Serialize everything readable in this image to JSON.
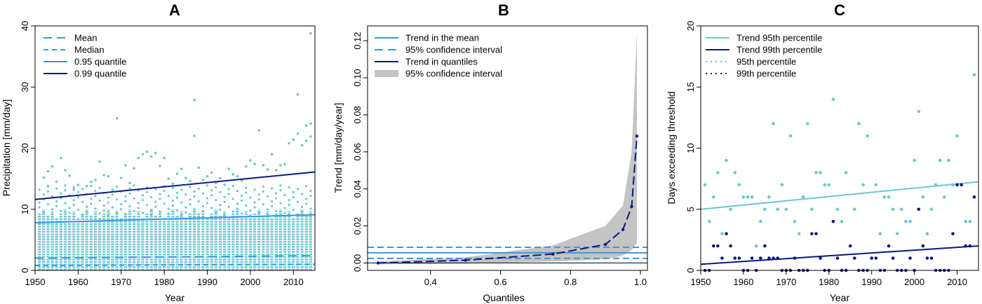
{
  "colors": {
    "light": "#6ec6cf",
    "medium": "#3399e6",
    "dark": "#0b1a80",
    "band": "#c4c4c4"
  },
  "chart_data": [
    {
      "type": "scatter",
      "title": "A",
      "xlabel": "Year",
      "ylabel": "Precipitation [mm/day]",
      "xlim": [
        1950,
        2015
      ],
      "ylim": [
        0,
        40
      ],
      "xticks": [
        1950,
        1960,
        1970,
        1980,
        1990,
        2000,
        2010
      ],
      "yticks": [
        0,
        10,
        20,
        30,
        40
      ],
      "legend_position": "top-left",
      "legend": [
        {
          "label": "Mean",
          "color": "medium",
          "style": "dashed"
        },
        {
          "label": "Median",
          "color": "medium",
          "style": "dashed-fine"
        },
        {
          "label": "0.95 quantile",
          "color": "medium",
          "style": "solid"
        },
        {
          "label": "0.99 quantile",
          "color": "dark",
          "style": "solid"
        }
      ],
      "lines": [
        {
          "name": "Mean",
          "style": "dashed",
          "color": "medium",
          "x": [
            1950,
            2015
          ],
          "y": [
            2.0,
            2.4
          ]
        },
        {
          "name": "Median",
          "style": "dashed-fine",
          "color": "medium",
          "x": [
            1950,
            2015
          ],
          "y": [
            0.8,
            1.0
          ]
        },
        {
          "name": "0.95 quantile",
          "style": "solid",
          "color": "medium",
          "x": [
            1950,
            2015
          ],
          "y": [
            7.8,
            9.1
          ]
        },
        {
          "name": "0.99 quantile",
          "style": "solid",
          "color": "dark",
          "x": [
            1950,
            2015
          ],
          "y": [
            11.6,
            16.1
          ]
        }
      ],
      "points": [
        [
          1952,
          15.2
        ],
        [
          1953,
          13.8
        ],
        [
          1953,
          16.2
        ],
        [
          1954,
          17.0
        ],
        [
          1955,
          14.5
        ],
        [
          1956,
          18.4
        ],
        [
          1957,
          16.4
        ],
        [
          1958,
          15.5
        ],
        [
          1959,
          13.2
        ],
        [
          1960,
          14.0
        ],
        [
          1962,
          13.8
        ],
        [
          1963,
          14.5
        ],
        [
          1964,
          14.8
        ],
        [
          1965,
          17.8
        ],
        [
          1966,
          15.6
        ],
        [
          1967,
          15.4
        ],
        [
          1968,
          13.2
        ],
        [
          1969,
          24.9
        ],
        [
          1970,
          15.1
        ],
        [
          1971,
          17.2
        ],
        [
          1972,
          14.3
        ],
        [
          1973,
          16.7
        ],
        [
          1974,
          18.4
        ],
        [
          1975,
          19.0
        ],
        [
          1976,
          19.4
        ],
        [
          1977,
          18.6
        ],
        [
          1978,
          19.2
        ],
        [
          1979,
          17.1
        ],
        [
          1980,
          18.4
        ],
        [
          1981,
          15.0
        ],
        [
          1982,
          14.2
        ],
        [
          1983,
          15.8
        ],
        [
          1984,
          16.6
        ],
        [
          1985,
          15.1
        ],
        [
          1986,
          14.6
        ],
        [
          1987,
          27.9
        ],
        [
          1987,
          22.0
        ],
        [
          1988,
          16.8
        ],
        [
          1989,
          14.8
        ],
        [
          1990,
          15.4
        ],
        [
          1991,
          16.0
        ],
        [
          1992,
          14.3
        ],
        [
          1993,
          15.1
        ],
        [
          1994,
          14.0
        ],
        [
          1995,
          16.6
        ],
        [
          1996,
          15.7
        ],
        [
          1997,
          15.4
        ],
        [
          1998,
          14.7
        ],
        [
          1999,
          17.0
        ],
        [
          2000,
          18.0
        ],
        [
          2001,
          17.4
        ],
        [
          2002,
          22.9
        ],
        [
          2003,
          17.2
        ],
        [
          2004,
          16.5
        ],
        [
          2005,
          19.0
        ],
        [
          2006,
          16.4
        ],
        [
          2007,
          17.2
        ],
        [
          2008,
          17.4
        ],
        [
          2009,
          20.8
        ],
        [
          2010,
          21.4
        ],
        [
          2011,
          28.8
        ],
        [
          2011,
          22.4
        ],
        [
          2012,
          20.5
        ],
        [
          2013,
          21.2
        ],
        [
          2013,
          23.7
        ],
        [
          2014,
          38.8
        ],
        [
          2014,
          24.0
        ],
        [
          2014,
          21.9
        ]
      ]
    },
    {
      "type": "line",
      "title": "B",
      "xlabel": "Quantiles",
      "ylabel": "Trend [mm/day/year]",
      "xlim": [
        0.22,
        1.02
      ],
      "ylim": [
        -0.004,
        0.128
      ],
      "xticks": [
        0.4,
        0.6,
        0.8,
        1.0
      ],
      "xtick_labels": [
        "0.4",
        "0.6",
        "0.8",
        "1.0"
      ],
      "yticks": [
        0.0,
        0.02,
        0.04,
        0.06,
        0.08,
        0.1,
        0.12
      ],
      "ytick_labels": [
        "0.00",
        "0.02",
        "0.04",
        "0.06",
        "0.08",
        "0.10",
        "0.12"
      ],
      "legend_position": "top-left",
      "legend": [
        {
          "label": "Trend in the mean",
          "color": "medium",
          "style": "solid"
        },
        {
          "label": "95% confidence interval",
          "color": "medium",
          "style": "dashed"
        },
        {
          "label": "Trend in quantiles",
          "color": "dark",
          "style": "solid"
        },
        {
          "label": "95% confidence interval",
          "color": "band",
          "style": "band"
        }
      ],
      "mean_trend": 0.0055,
      "mean_ci": [
        0.0025,
        0.0085
      ],
      "quantiles": [
        0.25,
        0.5,
        0.75,
        0.9,
        0.95,
        0.975,
        0.99
      ],
      "trend": [
        0.0,
        0.0015,
        0.0048,
        0.01,
        0.018,
        0.0305,
        0.0685
      ],
      "ci_lower": [
        -0.0008,
        -0.0003,
        0.0008,
        0.002,
        0.004,
        0.007,
        0.011
      ],
      "ci_upper": [
        0.0008,
        0.003,
        0.0095,
        0.02,
        0.031,
        0.06,
        0.1245
      ]
    },
    {
      "type": "scatter",
      "title": "C",
      "xlabel": "Year",
      "ylabel": "Days exceeding threshold",
      "xlim": [
        1950,
        2015
      ],
      "ylim": [
        0,
        20
      ],
      "xticks": [
        1950,
        1960,
        1970,
        1980,
        1990,
        2000,
        2010
      ],
      "yticks": [
        0,
        5,
        10,
        15,
        20
      ],
      "legend_position": "top-left",
      "legend": [
        {
          "label": "Trend 95th percentile",
          "color": "light",
          "style": "solid"
        },
        {
          "label": "Trend 99th percentile",
          "color": "dark",
          "style": "solid"
        },
        {
          "label": "95th percentile",
          "color": "light",
          "style": "dotted"
        },
        {
          "label": "99th percentile",
          "color": "dark",
          "style": "dotted"
        }
      ],
      "lines": [
        {
          "name": "Trend 95th percentile",
          "color": "light",
          "x": [
            1950,
            2015
          ],
          "y": [
            5.0,
            7.25
          ]
        },
        {
          "name": "Trend 99th percentile",
          "color": "dark",
          "x": [
            1950,
            2015
          ],
          "y": [
            0.5,
            2.0
          ]
        }
      ],
      "series": [
        {
          "name": "95th percentile",
          "color": "light",
          "x": [
            1951,
            1952,
            1953,
            1954,
            1955,
            1956,
            1957,
            1958,
            1959,
            1960,
            1961,
            1962,
            1963,
            1964,
            1965,
            1966,
            1967,
            1968,
            1969,
            1970,
            1971,
            1972,
            1973,
            1974,
            1975,
            1976,
            1977,
            1978,
            1979,
            1980,
            1981,
            1982,
            1983,
            1984,
            1985,
            1986,
            1987,
            1988,
            1989,
            1990,
            1991,
            1992,
            1993,
            1994,
            1995,
            1996,
            1997,
            1998,
            1999,
            2000,
            2001,
            2002,
            2003,
            2004,
            2005,
            2006,
            2007,
            2008,
            2009,
            2010,
            2011,
            2012,
            2013,
            2014
          ],
          "y": [
            7,
            4,
            6,
            8,
            3,
            9,
            5,
            8,
            7,
            6,
            6,
            6,
            2,
            4,
            5,
            6,
            12,
            5,
            7,
            5,
            11,
            4,
            3,
            6,
            12,
            5,
            8,
            8,
            7,
            7,
            14,
            5,
            4,
            8,
            2,
            5,
            12,
            7,
            11,
            1,
            7,
            3,
            6,
            6,
            5,
            3,
            5,
            4,
            4,
            9,
            13,
            6,
            3,
            5,
            7,
            9,
            6,
            9,
            7,
            11,
            7,
            4,
            4,
            16
          ]
        },
        {
          "name": "99th percentile",
          "color": "dark",
          "x": [
            1951,
            1952,
            1953,
            1954,
            1955,
            1956,
            1957,
            1958,
            1959,
            1960,
            1961,
            1962,
            1963,
            1964,
            1965,
            1966,
            1967,
            1968,
            1969,
            1970,
            1971,
            1972,
            1973,
            1974,
            1975,
            1976,
            1977,
            1978,
            1979,
            1980,
            1981,
            1982,
            1983,
            1984,
            1985,
            1986,
            1987,
            1988,
            1989,
            1990,
            1991,
            1992,
            1993,
            1994,
            1995,
            1996,
            1997,
            1998,
            1999,
            2000,
            2001,
            2002,
            2003,
            2004,
            2005,
            2006,
            2007,
            2008,
            2009,
            2010,
            2011,
            2012,
            2013,
            2014
          ],
          "y": [
            0,
            0,
            2,
            2,
            1,
            3,
            2,
            1,
            1,
            0,
            0,
            1,
            0,
            1,
            2,
            1,
            1,
            1,
            0,
            0,
            0,
            1,
            0,
            0,
            0,
            3,
            3,
            1,
            0,
            0,
            4,
            1,
            0,
            0,
            2,
            1,
            0,
            0,
            0,
            1,
            1,
            0,
            0,
            2,
            1,
            0,
            0,
            0,
            1,
            0,
            5,
            2,
            1,
            1,
            0,
            0,
            0,
            0,
            3,
            7,
            7,
            2,
            2,
            6
          ]
        }
      ]
    }
  ]
}
